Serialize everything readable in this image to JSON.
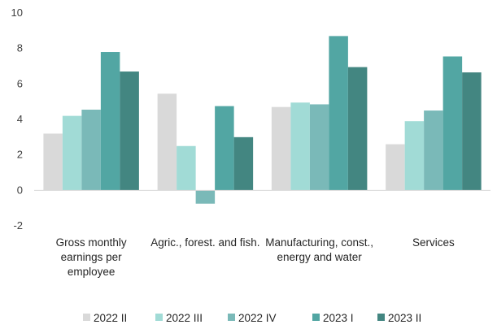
{
  "chart_data": {
    "type": "bar",
    "categories": [
      [
        "Gross monthly",
        "earnings per",
        "employee"
      ],
      [
        "Agric., forest. and fish."
      ],
      [
        "Manufacturing, const.,",
        "energy and water"
      ],
      [
        "Services"
      ]
    ],
    "series": [
      {
        "name": "2022 II",
        "color": "#d9d9d9",
        "values": [
          3.2,
          5.45,
          4.7,
          2.6
        ]
      },
      {
        "name": "2022 III",
        "color": "#a1dbd6",
        "values": [
          4.2,
          2.5,
          4.95,
          3.9
        ]
      },
      {
        "name": "2022 IV",
        "color": "#7ab9b8",
        "values": [
          4.55,
          -0.75,
          4.85,
          4.5
        ]
      },
      {
        "name": "2023 I",
        "color": "#52a6a3",
        "values": [
          7.8,
          4.75,
          8.7,
          7.55
        ]
      },
      {
        "name": "2023 II",
        "color": "#438681",
        "values": [
          6.7,
          3.0,
          6.95,
          6.65
        ]
      }
    ],
    "yticks": [
      -2,
      0,
      2,
      4,
      6,
      8,
      10
    ],
    "ylim": [
      -2,
      10
    ],
    "grid": false,
    "legend": "bottom",
    "axis_color": "#d9d9d9"
  }
}
